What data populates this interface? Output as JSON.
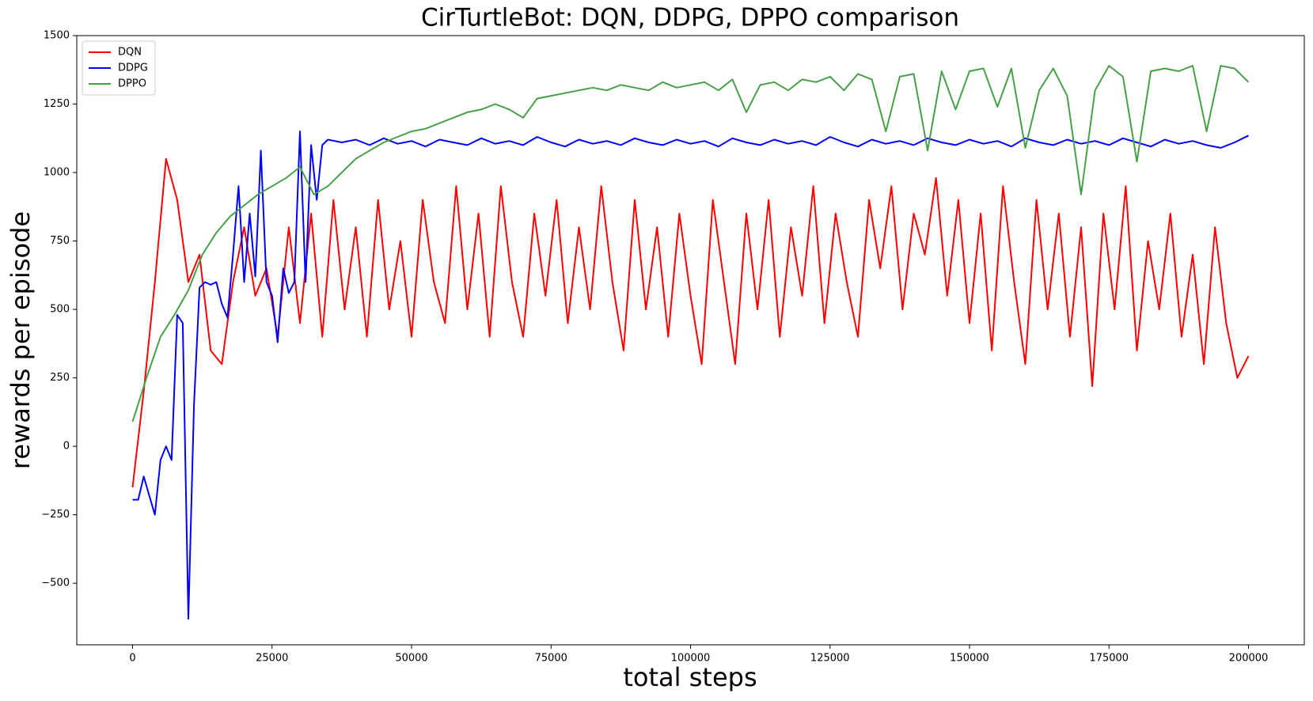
{
  "chart_data": {
    "type": "line",
    "title": "CirTurtleBot: DQN, DDPG, DPPO comparison",
    "x_label": "total steps",
    "y_label": "rewards per episode",
    "xlim": [
      -10000,
      210000
    ],
    "ylim": [
      -725,
      1500
    ],
    "xticks": [
      0,
      25000,
      50000,
      75000,
      100000,
      125000,
      150000,
      175000,
      200000
    ],
    "yticks": [
      {
        "value": -500,
        "label": "−500"
      },
      {
        "value": -250,
        "label": "−250"
      },
      0,
      250,
      500,
      750,
      1000,
      1250,
      1500
    ],
    "legend": "upper left",
    "series": [
      {
        "name": "DQN",
        "color": "#ff0000",
        "x": [
          0,
          2000,
          4000,
          6000,
          8000,
          10000,
          12000,
          14000,
          16000,
          18000,
          20000,
          22000,
          24000,
          26000,
          28000,
          30000,
          32000,
          34000,
          36000,
          38000,
          40000,
          42000,
          44000,
          46000,
          48000,
          50000,
          52000,
          54000,
          56000,
          58000,
          60000,
          62000,
          64000,
          66000,
          68000,
          70000,
          72000,
          74000,
          76000,
          78000,
          80000,
          82000,
          84000,
          86000,
          88000,
          90000,
          92000,
          94000,
          96000,
          98000,
          100000,
          102000,
          104000,
          106000,
          108000,
          110000,
          112000,
          114000,
          116000,
          118000,
          120000,
          122000,
          124000,
          126000,
          128000,
          130000,
          132000,
          134000,
          136000,
          138000,
          140000,
          142000,
          144000,
          146000,
          148000,
          150000,
          152000,
          154000,
          156000,
          158000,
          160000,
          162000,
          164000,
          166000,
          168000,
          170000,
          172000,
          174000,
          176000,
          178000,
          180000,
          182000,
          184000,
          186000,
          188000,
          190000,
          192000,
          194000,
          196000,
          198000,
          200000
        ],
        "values": [
          -150,
          200,
          600,
          1050,
          900,
          600,
          700,
          350,
          300,
          600,
          800,
          550,
          650,
          400,
          800,
          450,
          850,
          400,
          900,
          500,
          800,
          400,
          900,
          500,
          750,
          400,
          900,
          600,
          450,
          950,
          500,
          850,
          400,
          950,
          600,
          400,
          850,
          550,
          900,
          450,
          800,
          500,
          950,
          600,
          350,
          900,
          500,
          800,
          400,
          850,
          550,
          300,
          900,
          600,
          300,
          850,
          500,
          900,
          400,
          800,
          550,
          950,
          450,
          850,
          600,
          400,
          900,
          650,
          950,
          500,
          850,
          700,
          980,
          550,
          900,
          450,
          850,
          350,
          950,
          600,
          300,
          900,
          500,
          850,
          400,
          800,
          220,
          850,
          500,
          950,
          350,
          750,
          500,
          850,
          400,
          700,
          300,
          800,
          450,
          250,
          330
        ]
      },
      {
        "name": "DDPG",
        "color": "#0000ff",
        "x": [
          0,
          1000,
          2000,
          3000,
          4000,
          5000,
          6000,
          7000,
          8000,
          9000,
          10000,
          11000,
          12000,
          13000,
          14000,
          15000,
          16000,
          17000,
          18000,
          19000,
          20000,
          21000,
          22000,
          23000,
          24000,
          25000,
          26000,
          27000,
          28000,
          29000,
          30000,
          31000,
          32000,
          33000,
          34000,
          35000,
          37500,
          40000,
          42500,
          45000,
          47500,
          50000,
          52500,
          55000,
          57500,
          60000,
          62500,
          65000,
          67500,
          70000,
          72500,
          75000,
          77500,
          80000,
          82500,
          85000,
          87500,
          90000,
          92500,
          95000,
          97500,
          100000,
          102500,
          105000,
          107500,
          110000,
          112500,
          115000,
          117500,
          120000,
          122500,
          125000,
          127500,
          130000,
          132500,
          135000,
          137500,
          140000,
          142500,
          145000,
          147500,
          150000,
          152500,
          155000,
          157500,
          160000,
          162500,
          165000,
          167500,
          170000,
          172500,
          175000,
          177500,
          180000,
          182500,
          185000,
          187500,
          190000,
          192500,
          195000,
          197500,
          200000
        ],
        "values": [
          -195,
          -195,
          -110,
          -180,
          -250,
          -50,
          0,
          -50,
          480,
          450,
          -630,
          150,
          580,
          600,
          590,
          600,
          520,
          470,
          700,
          950,
          600,
          850,
          620,
          1080,
          600,
          550,
          380,
          650,
          560,
          600,
          1150,
          600,
          1100,
          900,
          1100,
          1120,
          1110,
          1120,
          1100,
          1125,
          1105,
          1115,
          1095,
          1120,
          1110,
          1100,
          1125,
          1105,
          1115,
          1100,
          1130,
          1110,
          1095,
          1120,
          1105,
          1115,
          1100,
          1125,
          1110,
          1100,
          1120,
          1105,
          1115,
          1095,
          1125,
          1110,
          1100,
          1120,
          1105,
          1115,
          1100,
          1130,
          1110,
          1095,
          1120,
          1105,
          1115,
          1100,
          1125,
          1110,
          1100,
          1120,
          1105,
          1115,
          1095,
          1125,
          1110,
          1100,
          1120,
          1105,
          1115,
          1100,
          1125,
          1110,
          1095,
          1120,
          1105,
          1115,
          1100,
          1090,
          1110,
          1135
        ]
      },
      {
        "name": "DPPO",
        "color": "#46a046",
        "x": [
          0,
          2500,
          5000,
          7500,
          10000,
          12500,
          15000,
          17500,
          20000,
          22500,
          25000,
          27500,
          30000,
          32500,
          35000,
          37500,
          40000,
          42500,
          45000,
          47500,
          50000,
          52500,
          55000,
          57500,
          60000,
          62500,
          65000,
          67500,
          70000,
          72500,
          75000,
          77500,
          80000,
          82500,
          85000,
          87500,
          90000,
          92500,
          95000,
          97500,
          100000,
          102500,
          105000,
          107500,
          110000,
          112500,
          115000,
          117500,
          120000,
          122500,
          125000,
          127500,
          130000,
          132500,
          135000,
          137500,
          140000,
          142500,
          145000,
          147500,
          150000,
          152500,
          155000,
          157500,
          160000,
          162500,
          165000,
          167500,
          170000,
          172500,
          175000,
          177500,
          180000,
          182500,
          185000,
          187500,
          190000,
          192500,
          195000,
          197500,
          200000
        ],
        "values": [
          90,
          250,
          400,
          480,
          570,
          700,
          780,
          840,
          880,
          920,
          950,
          980,
          1020,
          920,
          950,
          1000,
          1050,
          1080,
          1110,
          1130,
          1150,
          1160,
          1180,
          1200,
          1220,
          1230,
          1250,
          1230,
          1200,
          1270,
          1280,
          1290,
          1300,
          1310,
          1300,
          1320,
          1310,
          1300,
          1330,
          1310,
          1320,
          1330,
          1300,
          1340,
          1220,
          1320,
          1330,
          1300,
          1340,
          1330,
          1350,
          1300,
          1360,
          1340,
          1150,
          1350,
          1360,
          1080,
          1370,
          1230,
          1370,
          1380,
          1240,
          1380,
          1090,
          1300,
          1380,
          1280,
          920,
          1300,
          1390,
          1350,
          1040,
          1370,
          1380,
          1370,
          1390,
          1150,
          1390,
          1380,
          1330
        ]
      }
    ]
  }
}
